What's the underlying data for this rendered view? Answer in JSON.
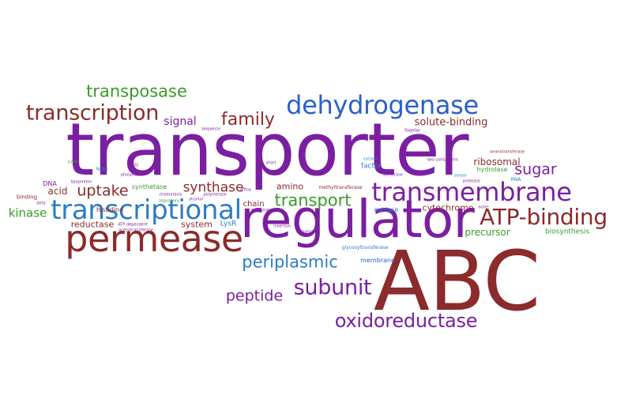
{
  "colors": {
    "purple": "#7b1fa2",
    "maroon": "#8b2b2b",
    "blue": "#2b7cc8",
    "green": "#3a9a2a"
  },
  "words": {
    "transporter": "transporter",
    "regulator": "regulator",
    "abc": "ABC",
    "permease": "permease",
    "transcriptional": "transcriptional",
    "transmembrane": "transmembrane",
    "atp_binding": "ATP-binding",
    "dehydrogenase": "dehydrogenase",
    "transcription": "transcription",
    "transposase": "transposase",
    "family": "family",
    "signal": "signal",
    "subunit": "subunit",
    "oxidoreductase": "oxidoreductase",
    "periplasmic": "periplasmic",
    "peptide": "peptide",
    "uptake": "uptake",
    "synthase": "synthase",
    "transport": "transport",
    "kinase": "kinase",
    "sugar": "sugar",
    "solute_binding": "solute-binding",
    "ribosomal": "ribosomal",
    "acid": "acid",
    "amino": "amino",
    "reductase": "reductase",
    "system": "system",
    "precursor": "precursor",
    "biosynthesis": "biosynthesis",
    "cytochrome": "cytochrome",
    "hydrolase": "hydrolase",
    "factor": "factor",
    "oxidase": "oxidase",
    "synthetase": "synthetase",
    "histidine": "histidine",
    "chain": "chain",
    "lysr": "LysR",
    "membrane": "membrane",
    "dna": "DNA",
    "binding": "binding",
    "methyltransferase": "methyltransferase",
    "glycosyltransferase": "glycosyltransferase",
    "sequence": "sequence",
    "polymerase": "polymerase",
    "rna": "RNA",
    "isomerase": "isomerase",
    "protease": "protease",
    "insertion": "insertion",
    "response": "response",
    "alcohol": "alcohol",
    "cyclase": "cyclase",
    "flagellar": "flagellar",
    "aminotransferase": "aminotransferase",
    "efflux": "efflux",
    "nadh": "NADH",
    "sos": "SOS",
    "atp_dependent": "ATP dependent",
    "acetyltransferase": "acetyltransferase",
    "regulatory": "regulatory",
    "chemotaxis": "chemotaxis",
    "dehydratase": "dehydratase",
    "sensor": "sensor",
    "two_component": "two-component",
    "short": "short",
    "glu": "GntR",
    "beta": "beta",
    "outer": "outer",
    "lipoprotein": "lipoprotein",
    "phosphate": "phosphate"
  }
}
